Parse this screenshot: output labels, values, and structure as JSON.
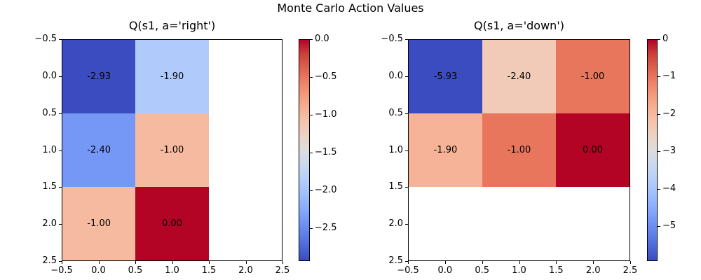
{
  "figure": {
    "title": "Monte Carlo Action Values"
  },
  "palette": {
    "colormap": "coolwarm",
    "min_color": "#3b4cc0",
    "max_color": "#b40426",
    "text_color": "#000000",
    "axis_color": "#000000",
    "background": "#ffffff"
  },
  "chart_data": [
    {
      "type": "heatmap",
      "title": "Q(s1, a='right')",
      "colormap": "coolwarm",
      "origin": "upper",
      "vmin": -2.93,
      "vmax": 0.0,
      "rows": 3,
      "cols": 3,
      "xlim": [
        -0.5,
        2.5
      ],
      "ylim": [
        -0.5,
        2.5
      ],
      "matrix": [
        [
          -2.93,
          -1.9,
          null
        ],
        [
          -2.4,
          -1.0,
          null
        ],
        [
          -1.0,
          0.0,
          null
        ]
      ],
      "cells": [
        {
          "row": 0,
          "col": 0,
          "value": -2.93,
          "label": "-2.93"
        },
        {
          "row": 0,
          "col": 1,
          "value": -1.9,
          "label": "-1.90"
        },
        {
          "row": 1,
          "col": 0,
          "value": -2.4,
          "label": "-2.40"
        },
        {
          "row": 1,
          "col": 1,
          "value": -1.0,
          "label": "-1.00"
        },
        {
          "row": 2,
          "col": 0,
          "value": -1.0,
          "label": "-1.00"
        },
        {
          "row": 2,
          "col": 1,
          "value": 0.0,
          "label": "0.00"
        }
      ],
      "xtick_values": [
        -0.5,
        0,
        0.5,
        1,
        1.5,
        2,
        2.5
      ],
      "xtick_labels": [
        "−0.5",
        "0.0",
        "0.5",
        "1.0",
        "1.5",
        "2.0",
        "2.5"
      ],
      "ytick_values": [
        -0.5,
        0,
        0.5,
        1,
        1.5,
        2,
        2.5
      ],
      "ytick_labels": [
        "−0.5",
        "0.0",
        "0.5",
        "1.0",
        "1.5",
        "2.0",
        "2.5"
      ],
      "colorbar_ticks": [
        {
          "value": 0,
          "label": "0.0"
        },
        {
          "value": -0.5,
          "label": "−0.5"
        },
        {
          "value": -1,
          "label": "−1.0"
        },
        {
          "value": -1.5,
          "label": "−1.5"
        },
        {
          "value": -2,
          "label": "−2.0"
        },
        {
          "value": -2.5,
          "label": "−2.5"
        }
      ]
    },
    {
      "type": "heatmap",
      "title": "Q(s1, a='down')",
      "colormap": "coolwarm",
      "origin": "upper",
      "vmin": -5.93,
      "vmax": 0.0,
      "rows": 3,
      "cols": 3,
      "xlim": [
        -0.5,
        2.5
      ],
      "ylim": [
        -0.5,
        2.5
      ],
      "matrix": [
        [
          -5.93,
          -2.4,
          -1.0
        ],
        [
          -1.9,
          -1.0,
          0.0
        ],
        [
          null,
          null,
          null
        ]
      ],
      "cells": [
        {
          "row": 0,
          "col": 0,
          "value": -5.93,
          "label": "-5.93"
        },
        {
          "row": 0,
          "col": 1,
          "value": -2.4,
          "label": "-2.40"
        },
        {
          "row": 0,
          "col": 2,
          "value": -1.0,
          "label": "-1.00"
        },
        {
          "row": 1,
          "col": 0,
          "value": -1.9,
          "label": "-1.90"
        },
        {
          "row": 1,
          "col": 1,
          "value": -1.0,
          "label": "-1.00"
        },
        {
          "row": 1,
          "col": 2,
          "value": 0.0,
          "label": "0.00"
        }
      ],
      "xtick_values": [
        -0.5,
        0,
        0.5,
        1,
        1.5,
        2,
        2.5
      ],
      "xtick_labels": [
        "−0.5",
        "0.0",
        "0.5",
        "1.0",
        "1.5",
        "2.0",
        "2.5"
      ],
      "ytick_values": [
        -0.5,
        0,
        0.5,
        1,
        1.5,
        2,
        2.5
      ],
      "ytick_labels": [
        "−0.5",
        "0.0",
        "0.5",
        "1.0",
        "1.5",
        "2.0",
        "2.5"
      ],
      "colorbar_ticks": [
        {
          "value": 0,
          "label": "0"
        },
        {
          "value": -1,
          "label": "−1"
        },
        {
          "value": -2,
          "label": "−2"
        },
        {
          "value": -3,
          "label": "−3"
        },
        {
          "value": -4,
          "label": "−4"
        },
        {
          "value": -5,
          "label": "−5"
        }
      ]
    }
  ]
}
